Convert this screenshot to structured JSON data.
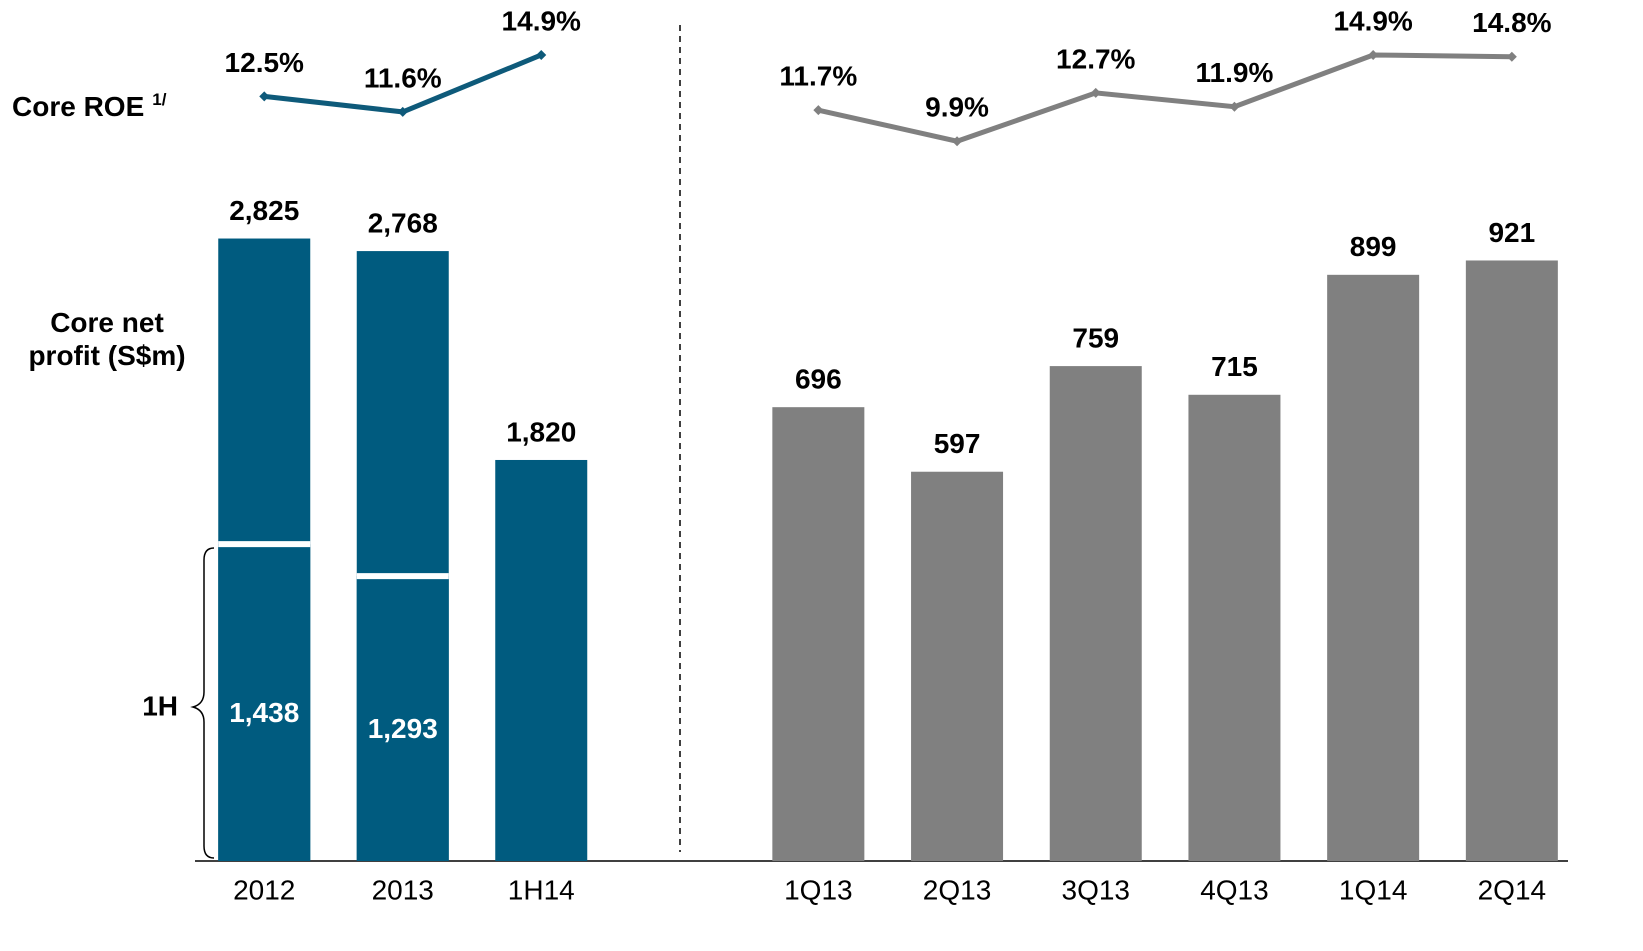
{
  "chart_data": [
    {
      "type": "bar",
      "categories": [
        "2012",
        "2013",
        "1H14"
      ],
      "ylim": [
        0,
        2900
      ],
      "y2lim": [
        8,
        16
      ],
      "series": [
        {
          "name": "Core net profit (S$m)",
          "color": "#005b7f",
          "values": [
            2825,
            2768,
            1820
          ],
          "value_labels": [
            "2,825",
            "2,768",
            "1,820"
          ]
        },
        {
          "name": "1H",
          "color": "#005b7f",
          "values": [
            1438,
            1293,
            null
          ],
          "value_labels": [
            "1,438",
            "1,293",
            null
          ]
        },
        {
          "name": "Core ROE",
          "footnote": "1/",
          "color": "#0e5a7a",
          "axis": "y2",
          "values": [
            12.5,
            11.6,
            14.9
          ],
          "value_labels": [
            "12.5%",
            "11.6%",
            "14.9%"
          ]
        }
      ]
    },
    {
      "type": "bar",
      "categories": [
        "1Q13",
        "2Q13",
        "3Q13",
        "4Q13",
        "1Q14",
        "2Q14"
      ],
      "ylim": [
        0,
        980
      ],
      "y2lim": [
        8,
        16
      ],
      "series": [
        {
          "color": "#808080",
          "values": [
            696,
            597,
            759,
            715,
            899,
            921
          ]
        },
        {
          "color": "#808080",
          "axis": "y2",
          "values": [
            11.7,
            9.9,
            12.7,
            11.9,
            14.9,
            14.8
          ],
          "value_labels": [
            "11.7%",
            "9.9%",
            "12.7%",
            "11.9%",
            "14.9%",
            "14.8%"
          ]
        }
      ]
    }
  ]
}
